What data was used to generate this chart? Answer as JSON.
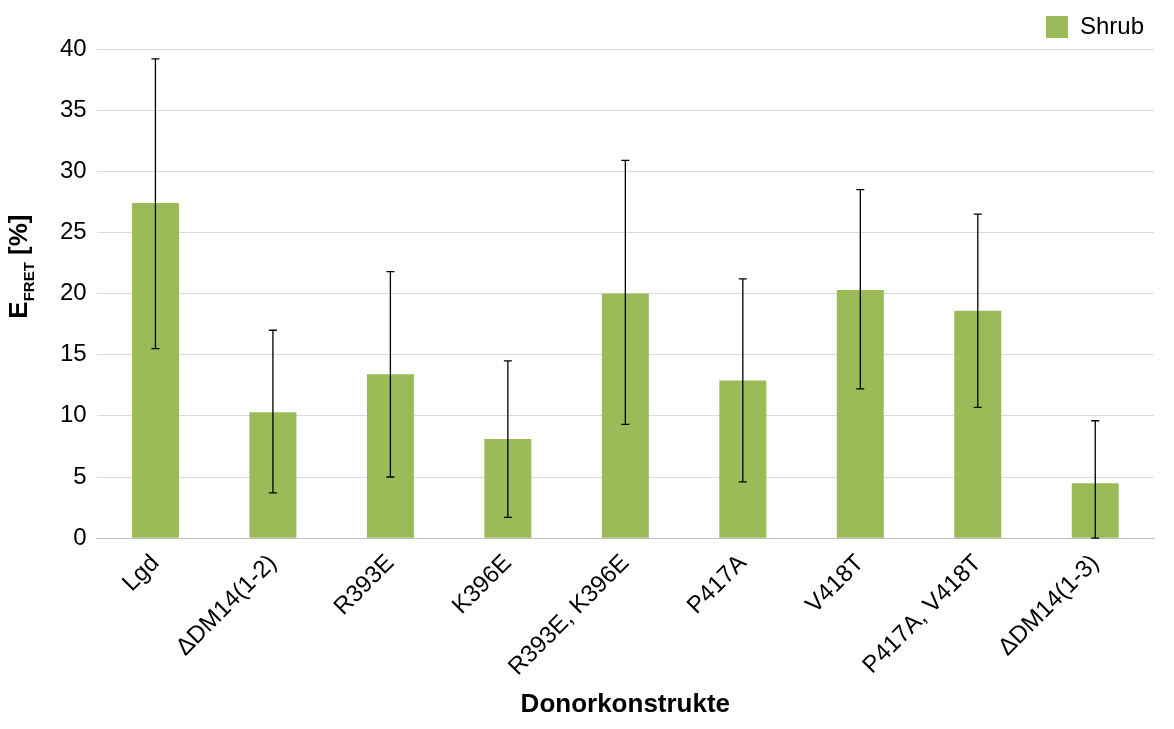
{
  "chart_data": {
    "type": "bar",
    "xlabel": "Donorkonstrukte",
    "ylabel": "E$_{FRET}$ [%]",
    "categories": [
      "Lgd",
      "ΔDM14(1-2)",
      "R393E",
      "K396E",
      "R393E, K396E",
      "P417A",
      "V418T",
      "P417A, V418T",
      "ΔDM14(1-3)"
    ],
    "series": [
      {
        "name": "Shrub",
        "color": "#9bbb59",
        "values": [
          27.4,
          10.3,
          13.4,
          8.1,
          20.0,
          12.9,
          20.3,
          18.6,
          4.5
        ],
        "errors": [
          [
            15.5,
            39.2
          ],
          [
            3.7,
            17.0
          ],
          [
            5.0,
            21.8
          ],
          [
            1.7,
            14.5
          ],
          [
            9.3,
            30.9
          ],
          [
            4.6,
            21.2
          ],
          [
            12.2,
            28.5
          ],
          [
            10.7,
            26.5
          ],
          [
            0,
            9.6
          ]
        ]
      }
    ],
    "ylim": [
      0,
      40
    ],
    "yticks": [
      0,
      5,
      10,
      15,
      20,
      25,
      30,
      35,
      40
    ],
    "grid": "y",
    "legend": "top right"
  }
}
